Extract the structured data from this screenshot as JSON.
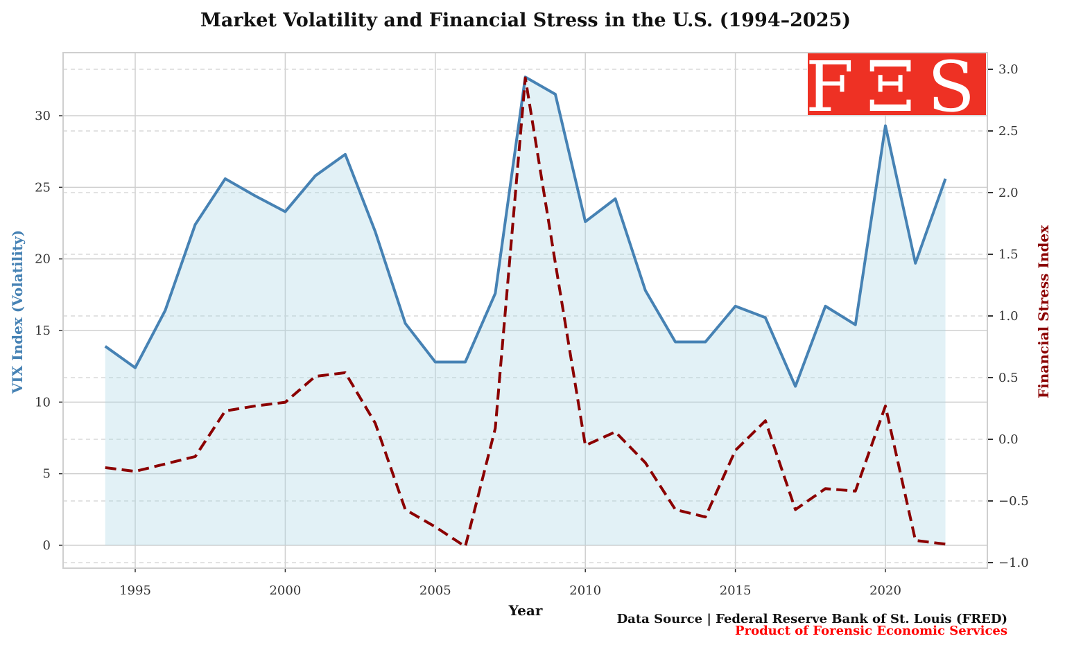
{
  "chart_data": {
    "type": "line",
    "title": "Market Volatility and Financial Stress in the U.S. (1994–2025)",
    "xlabel": "Year",
    "ylabel_left": "VIX Index (Volatility)",
    "ylabel_right": "Financial Stress Index",
    "x": [
      1994,
      1995,
      1996,
      1997,
      1998,
      1999,
      2000,
      2001,
      2002,
      2003,
      2004,
      2005,
      2006,
      2007,
      2008,
      2009,
      2010,
      2011,
      2012,
      2013,
      2014,
      2015,
      2016,
      2017,
      2018,
      2019,
      2020,
      2021,
      2022
    ],
    "series": [
      {
        "axis": "left",
        "style": "solid with area fill",
        "color": "#4682b4",
        "fill": "#add8e6",
        "values": [
          13.9,
          12.4,
          16.4,
          22.4,
          25.6,
          24.4,
          23.3,
          25.8,
          27.3,
          21.9,
          15.5,
          12.8,
          12.8,
          17.6,
          32.7,
          31.5,
          22.6,
          24.2,
          17.8,
          14.2,
          14.2,
          16.7,
          15.9,
          11.1,
          16.7,
          15.4,
          29.3,
          19.7,
          25.6
        ]
      },
      {
        "axis": "right",
        "style": "dashed",
        "color": "#8b0000",
        "values": [
          -0.23,
          -0.26,
          -0.2,
          -0.14,
          0.23,
          0.27,
          0.3,
          0.51,
          0.54,
          0.13,
          -0.57,
          -0.71,
          -0.87,
          0.09,
          2.93,
          1.43,
          -0.05,
          0.06,
          -0.19,
          -0.57,
          -0.63,
          -0.09,
          0.15,
          -0.57,
          -0.4,
          -0.42,
          0.27,
          -0.82,
          -0.85
        ]
      }
    ],
    "xticks": [
      1995,
      2000,
      2005,
      2010,
      2015,
      2020
    ],
    "yticks_left": [
      0,
      5,
      10,
      15,
      20,
      25,
      30
    ],
    "yticks_right": [
      -1.0,
      -0.5,
      0.0,
      0.5,
      1.0,
      1.5,
      2.0,
      2.5,
      3.0
    ],
    "xlim": [
      1991.6,
      2022.4
    ],
    "ylim_left": [
      -1.6,
      34.4
    ],
    "ylim_right": [
      -1.1,
      3.15
    ],
    "grid": true,
    "left_label_color": "#4682b4",
    "right_label_color": "#8b0000"
  },
  "logo": {
    "text": "FΞS",
    "color": "#ee3124"
  },
  "footer": {
    "source": "Data Source | Federal Reserve Bank of St. Louis (FRED)",
    "product": "Product of Forensic Economic Services",
    "product_color": "#ff0000"
  }
}
